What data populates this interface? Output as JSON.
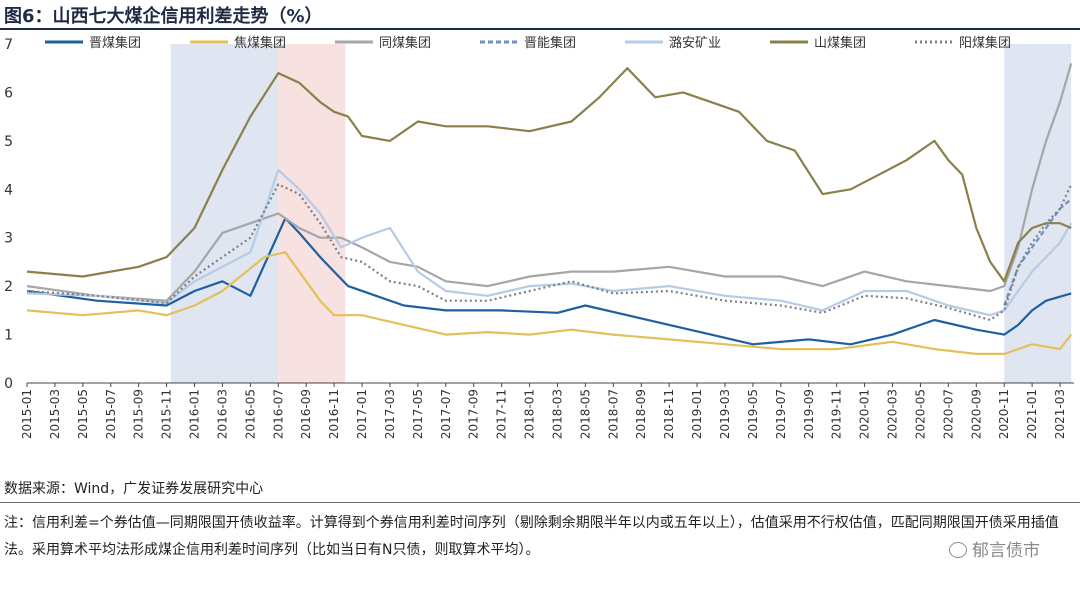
{
  "title": "图6：山西七大煤企信用利差走势（%）",
  "source": "数据来源：Wind，广发证券发展研究中心",
  "note": "注：信用利差=个券估值—同期限国开债收益率。计算得到个券信用利差时间序列（剔除剩余期限半年以内或五年以上），估值采用不行权估值，匹配同期限国开债采用插值法。采用算术平均法形成煤企信用利差时间序列（比如当日有N只债，则取算术平均）。",
  "watermark": "郁言债市",
  "chart_data": {
    "type": "line",
    "title": "山西七大煤企信用利差走势（%）",
    "xlabel": "",
    "ylabel": "",
    "ylim": [
      0,
      7
    ],
    "yticks": [
      0,
      1,
      2,
      3,
      4,
      5,
      6,
      7
    ],
    "x_start": "2015-01",
    "x_end": "2021-04",
    "x_tick_labels": [
      "2015-01",
      "2015-03",
      "2015-05",
      "2015-07",
      "2015-09",
      "2015-11",
      "2016-01",
      "2016-03",
      "2016-05",
      "2016-07",
      "2016-09",
      "2016-11",
      "2017-01",
      "2017-03",
      "2017-05",
      "2017-07",
      "2017-09",
      "2017-11",
      "2018-01",
      "2018-03",
      "2018-05",
      "2018-07",
      "2018-09",
      "2018-11",
      "2019-01",
      "2019-03",
      "2019-05",
      "2019-07",
      "2019-09",
      "2019-11",
      "2020-01",
      "2020-03",
      "2020-05",
      "2020-07",
      "2020-09",
      "2020-11",
      "2021-01",
      "2021-03"
    ],
    "shaded_periods": [
      {
        "from": 10.3,
        "to": 18.0,
        "color": "#dfe6f2"
      },
      {
        "from": 18.0,
        "to": 22.8,
        "color": "#f8e1e1"
      },
      {
        "from": 70.0,
        "to": 74.8,
        "color": "#dfe6f2"
      }
    ],
    "series": [
      {
        "name": "晋煤集团",
        "color": "#1f5fa0",
        "dash": "",
        "points": [
          [
            0,
            1.9
          ],
          [
            5,
            1.7
          ],
          [
            10,
            1.6
          ],
          [
            12,
            1.9
          ],
          [
            14,
            2.1
          ],
          [
            16,
            1.8
          ],
          [
            18.5,
            3.4
          ],
          [
            19.5,
            3.1
          ],
          [
            21,
            2.6
          ],
          [
            22,
            2.3
          ],
          [
            23,
            2.0
          ],
          [
            25,
            1.8
          ],
          [
            27,
            1.6
          ],
          [
            30,
            1.5
          ],
          [
            34,
            1.5
          ],
          [
            38,
            1.45
          ],
          [
            40,
            1.6
          ],
          [
            43,
            1.4
          ],
          [
            46,
            1.2
          ],
          [
            49,
            1.0
          ],
          [
            52,
            0.8
          ],
          [
            56,
            0.9
          ],
          [
            59,
            0.8
          ],
          [
            62,
            1.0
          ],
          [
            65,
            1.3
          ],
          [
            68,
            1.1
          ],
          [
            70,
            1.0
          ],
          [
            71,
            1.2
          ],
          [
            72,
            1.5
          ],
          [
            73,
            1.7
          ],
          [
            74.8,
            1.85
          ]
        ]
      },
      {
        "name": "焦煤集团",
        "color": "#e2c15a",
        "dash": "",
        "points": [
          [
            0,
            1.5
          ],
          [
            4,
            1.4
          ],
          [
            8,
            1.5
          ],
          [
            10,
            1.4
          ],
          [
            12,
            1.6
          ],
          [
            14,
            1.9
          ],
          [
            17,
            2.6
          ],
          [
            18.5,
            2.7
          ],
          [
            20,
            2.1
          ],
          [
            21,
            1.7
          ],
          [
            22,
            1.4
          ],
          [
            24,
            1.4
          ],
          [
            27,
            1.2
          ],
          [
            30,
            1.0
          ],
          [
            33,
            1.05
          ],
          [
            36,
            1.0
          ],
          [
            39,
            1.1
          ],
          [
            42,
            1.0
          ],
          [
            46,
            0.9
          ],
          [
            50,
            0.8
          ],
          [
            54,
            0.7
          ],
          [
            58,
            0.7
          ],
          [
            62,
            0.85
          ],
          [
            65,
            0.7
          ],
          [
            68,
            0.6
          ],
          [
            70,
            0.6
          ],
          [
            72,
            0.8
          ],
          [
            74,
            0.7
          ],
          [
            74.8,
            1.0
          ]
        ]
      },
      {
        "name": "同煤集团",
        "color": "#a6a6a6",
        "dash": "",
        "points": [
          [
            0,
            2.0
          ],
          [
            5,
            1.8
          ],
          [
            10,
            1.7
          ],
          [
            12,
            2.3
          ],
          [
            14,
            3.1
          ],
          [
            16,
            3.3
          ],
          [
            18,
            3.5
          ],
          [
            19.5,
            3.2
          ],
          [
            21,
            3.0
          ],
          [
            22.5,
            3.0
          ],
          [
            24,
            2.8
          ],
          [
            26,
            2.5
          ],
          [
            28,
            2.4
          ],
          [
            30,
            2.1
          ],
          [
            33,
            2.0
          ],
          [
            36,
            2.2
          ],
          [
            39,
            2.3
          ],
          [
            42,
            2.3
          ],
          [
            46,
            2.4
          ],
          [
            50,
            2.2
          ],
          [
            54,
            2.2
          ],
          [
            57,
            2.0
          ],
          [
            60,
            2.3
          ],
          [
            63,
            2.1
          ],
          [
            66,
            2.0
          ],
          [
            69,
            1.9
          ],
          [
            70,
            2.0
          ],
          [
            71,
            2.8
          ],
          [
            72,
            4.0
          ],
          [
            73,
            5.0
          ],
          [
            74,
            5.8
          ],
          [
            74.8,
            6.6
          ]
        ]
      },
      {
        "name": "晋能集团",
        "color": "#6e8ec6",
        "dash": "5 3",
        "points": [
          [
            70,
            1.6
          ],
          [
            71,
            2.4
          ],
          [
            72,
            2.8
          ],
          [
            73,
            3.2
          ],
          [
            74,
            3.6
          ],
          [
            74.8,
            3.8
          ]
        ]
      },
      {
        "name": "潞安矿业",
        "color": "#b5cbe6",
        "dash": "",
        "points": [
          [
            0,
            1.85
          ],
          [
            5,
            1.8
          ],
          [
            10,
            1.65
          ],
          [
            12,
            2.1
          ],
          [
            14,
            2.4
          ],
          [
            16,
            2.7
          ],
          [
            18,
            4.4
          ],
          [
            19.5,
            4.0
          ],
          [
            21,
            3.5
          ],
          [
            22.5,
            2.8
          ],
          [
            24,
            3.0
          ],
          [
            26,
            3.2
          ],
          [
            28,
            2.3
          ],
          [
            30,
            1.9
          ],
          [
            33,
            1.8
          ],
          [
            36,
            2.0
          ],
          [
            39,
            2.05
          ],
          [
            42,
            1.9
          ],
          [
            46,
            2.0
          ],
          [
            50,
            1.8
          ],
          [
            54,
            1.7
          ],
          [
            57,
            1.5
          ],
          [
            60,
            1.9
          ],
          [
            63,
            1.9
          ],
          [
            66,
            1.6
          ],
          [
            69,
            1.4
          ],
          [
            70,
            1.5
          ],
          [
            71,
            1.9
          ],
          [
            72,
            2.3
          ],
          [
            73,
            2.6
          ],
          [
            74,
            2.9
          ],
          [
            74.8,
            3.3
          ]
        ]
      },
      {
        "name": "山煤集团",
        "color": "#8b8049",
        "dash": "",
        "points": [
          [
            0,
            2.3
          ],
          [
            4,
            2.2
          ],
          [
            8,
            2.4
          ],
          [
            10,
            2.6
          ],
          [
            12,
            3.2
          ],
          [
            14,
            4.4
          ],
          [
            16,
            5.5
          ],
          [
            18,
            6.4
          ],
          [
            19.5,
            6.2
          ],
          [
            21,
            5.8
          ],
          [
            22,
            5.6
          ],
          [
            23,
            5.5
          ],
          [
            24,
            5.1
          ],
          [
            26,
            5.0
          ],
          [
            28,
            5.4
          ],
          [
            30,
            5.3
          ],
          [
            33,
            5.3
          ],
          [
            36,
            5.2
          ],
          [
            39,
            5.4
          ],
          [
            41,
            5.9
          ],
          [
            43,
            6.5
          ],
          [
            45,
            5.9
          ],
          [
            47,
            6.0
          ],
          [
            49,
            5.8
          ],
          [
            51,
            5.6
          ],
          [
            53,
            5.0
          ],
          [
            55,
            4.8
          ],
          [
            57,
            3.9
          ],
          [
            59,
            4.0
          ],
          [
            61,
            4.3
          ],
          [
            63,
            4.6
          ],
          [
            65,
            5.0
          ],
          [
            66,
            4.6
          ],
          [
            67,
            4.3
          ],
          [
            68,
            3.2
          ],
          [
            69,
            2.5
          ],
          [
            70,
            2.1
          ],
          [
            71,
            2.9
          ],
          [
            72,
            3.2
          ],
          [
            73,
            3.3
          ],
          [
            74,
            3.3
          ],
          [
            74.8,
            3.2
          ]
        ]
      },
      {
        "name": "阳煤集团",
        "color": "#7f7f7f",
        "dash": "2 3",
        "points": [
          [
            0,
            1.9
          ],
          [
            5,
            1.8
          ],
          [
            10,
            1.65
          ],
          [
            12,
            2.2
          ],
          [
            14,
            2.6
          ],
          [
            16,
            3.0
          ],
          [
            18,
            4.1
          ],
          [
            19.5,
            3.9
          ],
          [
            21,
            3.3
          ],
          [
            22.5,
            2.6
          ],
          [
            24,
            2.5
          ],
          [
            26,
            2.1
          ],
          [
            28,
            2.0
          ],
          [
            30,
            1.7
          ],
          [
            33,
            1.7
          ],
          [
            36,
            1.9
          ],
          [
            39,
            2.1
          ],
          [
            42,
            1.85
          ],
          [
            46,
            1.9
          ],
          [
            50,
            1.7
          ],
          [
            54,
            1.6
          ],
          [
            57,
            1.45
          ],
          [
            60,
            1.8
          ],
          [
            63,
            1.75
          ],
          [
            66,
            1.55
          ],
          [
            69,
            1.3
          ],
          [
            70,
            1.5
          ],
          [
            71,
            2.4
          ],
          [
            72,
            2.9
          ],
          [
            73,
            3.3
          ],
          [
            74,
            3.6
          ],
          [
            74.8,
            4.1
          ]
        ]
      }
    ]
  }
}
